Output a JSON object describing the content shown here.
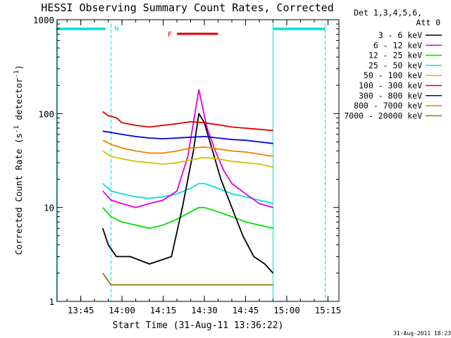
{
  "chart_data": {
    "type": "line",
    "title": "HESSI Observing Summary Count Rates, Corrected",
    "xlabel": "Start Time (31-Aug-11 13:36:22)",
    "ylabel": "Corrected Count Rate (s⁻¹ detector⁻¹)",
    "ylabel_parts": {
      "a": "Corrected Count Rate (s",
      "b": "-1",
      "c": " detector",
      "d": "-1",
      "e": ")"
    },
    "y_scale": "log",
    "ylim": [
      1,
      1000
    ],
    "xlim": [
      "13:36:22",
      "15:19:00"
    ],
    "x_ticks": [
      "13:45",
      "14:00",
      "14:15",
      "14:30",
      "14:45",
      "15:00",
      "15:15"
    ],
    "y_ticks": [
      "1",
      "10",
      "100",
      "1000"
    ],
    "legend_position": "right",
    "legend_header": [
      "Det 1,3,4,5,6,",
      "Att 0"
    ],
    "date_stamp": "31-Aug-2011 18:23",
    "annotations": {
      "flare_marker": {
        "label": "F",
        "start": "14:20",
        "end": "14:35",
        "color": "#e00000"
      },
      "night_marker": {
        "label": "N",
        "start": "13:56",
        "end": "14:54",
        "color": "#00e0e0"
      },
      "pre_eclipse_bar": {
        "start": "13:36",
        "end": "13:54"
      },
      "post_eclipse_bar": {
        "start": "14:55",
        "end": "15:14"
      }
    },
    "series": [
      {
        "name": "3 - 6 keV",
        "color": "#000000",
        "points": [
          [
            "13:53",
            6
          ],
          [
            "13:55",
            4
          ],
          [
            "13:58",
            3
          ],
          [
            "14:03",
            3
          ],
          [
            "14:10",
            2.5
          ],
          [
            "14:15",
            2.8
          ],
          [
            "14:18",
            3
          ],
          [
            "14:22",
            10
          ],
          [
            "14:26",
            40
          ],
          [
            "14:28",
            100
          ],
          [
            "14:30",
            80
          ],
          [
            "14:33",
            40
          ],
          [
            "14:36",
            20
          ],
          [
            "14:40",
            10
          ],
          [
            "14:44",
            5
          ],
          [
            "14:48",
            3
          ],
          [
            "14:52",
            2.5
          ],
          [
            "14:55",
            2
          ]
        ]
      },
      {
        "name": "6 - 12 keV",
        "color": "#e000e0",
        "points": [
          [
            "13:53",
            15
          ],
          [
            "13:56",
            12
          ],
          [
            "14:00",
            11
          ],
          [
            "14:05",
            10
          ],
          [
            "14:10",
            11
          ],
          [
            "14:15",
            12
          ],
          [
            "14:20",
            15
          ],
          [
            "14:24",
            35
          ],
          [
            "14:26",
            80
          ],
          [
            "14:28",
            180
          ],
          [
            "14:29",
            130
          ],
          [
            "14:31",
            70
          ],
          [
            "14:34",
            40
          ],
          [
            "14:37",
            25
          ],
          [
            "14:40",
            18
          ],
          [
            "14:45",
            14
          ],
          [
            "14:50",
            11
          ],
          [
            "14:55",
            10
          ]
        ]
      },
      {
        "name": "12 - 25 keV",
        "color": "#00e000",
        "points": [
          [
            "13:53",
            10
          ],
          [
            "13:56",
            8
          ],
          [
            "14:00",
            7
          ],
          [
            "14:05",
            6.5
          ],
          [
            "14:10",
            6
          ],
          [
            "14:15",
            6.5
          ],
          [
            "14:20",
            7.5
          ],
          [
            "14:25",
            9
          ],
          [
            "14:28",
            10
          ],
          [
            "14:30",
            10
          ],
          [
            "14:35",
            9
          ],
          [
            "14:40",
            8
          ],
          [
            "14:45",
            7
          ],
          [
            "14:50",
            6.5
          ],
          [
            "14:55",
            6
          ]
        ]
      },
      {
        "name": "25 - 50 keV",
        "color": "#00e0e0",
        "points": [
          [
            "13:53",
            18
          ],
          [
            "13:56",
            15
          ],
          [
            "14:00",
            14
          ],
          [
            "14:05",
            13
          ],
          [
            "14:10",
            12.5
          ],
          [
            "14:15",
            13
          ],
          [
            "14:20",
            14
          ],
          [
            "14:25",
            16
          ],
          [
            "14:28",
            18
          ],
          [
            "14:30",
            18
          ],
          [
            "14:35",
            16
          ],
          [
            "14:40",
            14
          ],
          [
            "14:45",
            13
          ],
          [
            "14:50",
            12
          ],
          [
            "14:55",
            11
          ]
        ]
      },
      {
        "name": "50 - 100 keV",
        "color": "#d0c000",
        "points": [
          [
            "13:53",
            40
          ],
          [
            "13:56",
            35
          ],
          [
            "14:00",
            33
          ],
          [
            "14:05",
            31
          ],
          [
            "14:10",
            30
          ],
          [
            "14:15",
            29
          ],
          [
            "14:20",
            30
          ],
          [
            "14:25",
            32
          ],
          [
            "14:30",
            34
          ],
          [
            "14:35",
            33
          ],
          [
            "14:40",
            31
          ],
          [
            "14:45",
            30
          ],
          [
            "14:50",
            29
          ],
          [
            "14:55",
            27
          ]
        ]
      },
      {
        "name": "100 - 300 keV",
        "color": "#e00000",
        "points": [
          [
            "13:53",
            105
          ],
          [
            "13:55",
            95
          ],
          [
            "13:58",
            90
          ],
          [
            "14:00",
            80
          ],
          [
            "14:05",
            75
          ],
          [
            "14:10",
            72
          ],
          [
            "14:15",
            75
          ],
          [
            "14:20",
            78
          ],
          [
            "14:25",
            82
          ],
          [
            "14:30",
            80
          ],
          [
            "14:35",
            76
          ],
          [
            "14:40",
            72
          ],
          [
            "14:45",
            70
          ],
          [
            "14:50",
            68
          ],
          [
            "14:55",
            66
          ]
        ]
      },
      {
        "name": "300 - 800 keV",
        "color": "#0000e0",
        "points": [
          [
            "13:53",
            65
          ],
          [
            "13:56",
            63
          ],
          [
            "14:00",
            60
          ],
          [
            "14:05",
            57
          ],
          [
            "14:10",
            55
          ],
          [
            "14:15",
            54
          ],
          [
            "14:20",
            55
          ],
          [
            "14:25",
            56
          ],
          [
            "14:30",
            57
          ],
          [
            "14:35",
            55
          ],
          [
            "14:40",
            53
          ],
          [
            "14:45",
            52
          ],
          [
            "14:50",
            50
          ],
          [
            "14:55",
            48
          ]
        ]
      },
      {
        "name": "800 - 7000 keV",
        "color": "#f08000",
        "points": [
          [
            "13:53",
            52
          ],
          [
            "13:56",
            47
          ],
          [
            "14:00",
            43
          ],
          [
            "14:05",
            40
          ],
          [
            "14:10",
            38
          ],
          [
            "14:15",
            38
          ],
          [
            "14:20",
            40
          ],
          [
            "14:25",
            43
          ],
          [
            "14:30",
            44
          ],
          [
            "14:35",
            42
          ],
          [
            "14:40",
            40
          ],
          [
            "14:45",
            39
          ],
          [
            "14:50",
            37
          ],
          [
            "14:55",
            35
          ]
        ]
      },
      {
        "name": "7000 - 20000 keV",
        "color": "#8c7c00",
        "points": [
          [
            "13:53",
            2
          ],
          [
            "13:56",
            1.5
          ],
          [
            "14:00",
            1.5
          ],
          [
            "14:05",
            1.5
          ],
          [
            "14:10",
            1.5
          ],
          [
            "14:15",
            1.5
          ],
          [
            "14:20",
            1.5
          ],
          [
            "14:25",
            1.5
          ],
          [
            "14:30",
            1.5
          ],
          [
            "14:35",
            1.5
          ],
          [
            "14:40",
            1.5
          ],
          [
            "14:45",
            1.5
          ],
          [
            "14:50",
            1.5
          ],
          [
            "14:55",
            1.5
          ]
        ]
      }
    ]
  }
}
